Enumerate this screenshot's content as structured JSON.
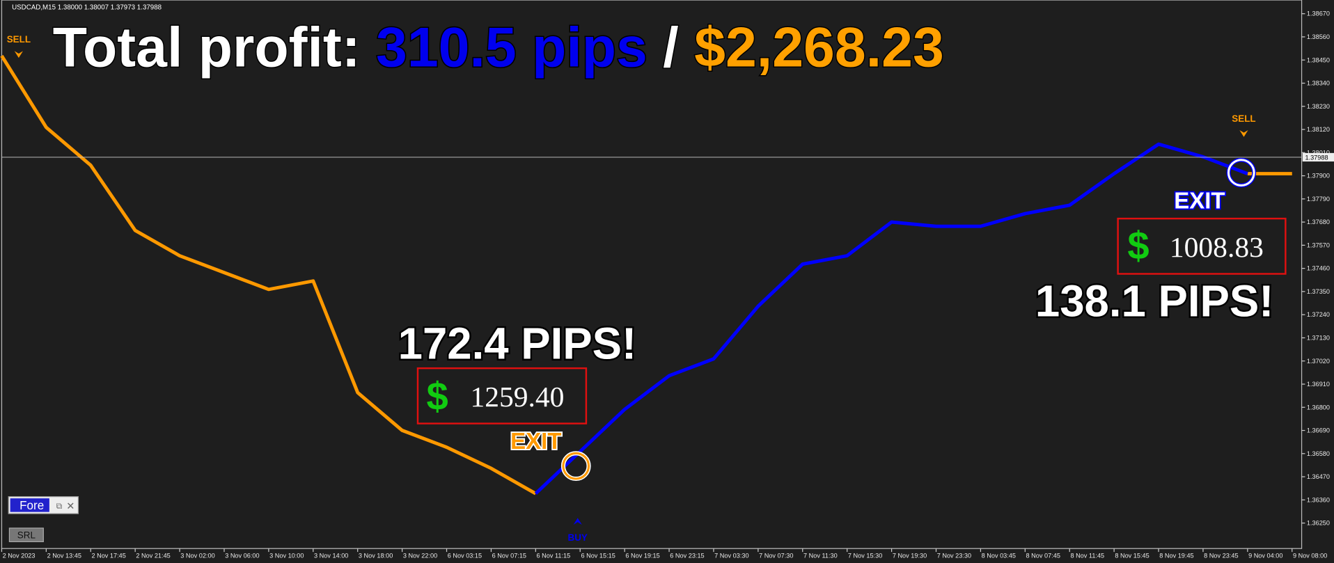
{
  "chart_data": {
    "type": "line",
    "ticker": "USDCAD,M15  1.38000 1.38007 1.37973 1.37988",
    "title": {
      "label": "Total profit:",
      "pips": "310.5 pips",
      "separator": "/",
      "money": "$2,268.23"
    },
    "categories": [
      "2 Nov 2023",
      "2 Nov 13:45",
      "2 Nov 17:45",
      "2 Nov 21:45",
      "3 Nov 02:00",
      "3 Nov 06:00",
      "3 Nov 10:00",
      "3 Nov 14:00",
      "3 Nov 18:00",
      "3 Nov 22:00",
      "6 Nov 03:15",
      "6 Nov 07:15",
      "6 Nov 11:15",
      "6 Nov 15:15",
      "6 Nov 19:15",
      "6 Nov 23:15",
      "7 Nov 03:30",
      "7 Nov 07:30",
      "7 Nov 11:30",
      "7 Nov 15:30",
      "7 Nov 19:30",
      "7 Nov 23:30",
      "8 Nov 03:45",
      "8 Nov 07:45",
      "8 Nov 11:45",
      "8 Nov 15:45",
      "8 Nov 19:45",
      "8 Nov 23:45",
      "9 Nov 04:00",
      "9 Nov 08:00"
    ],
    "series": [
      {
        "color": "#ff9900",
        "values": [
          1.3847,
          1.3813,
          1.3795,
          1.3764,
          1.3752,
          1.3744,
          1.3736,
          1.374,
          1.3687,
          1.3669,
          1.3661,
          1.3651,
          1.3639,
          null,
          null,
          null,
          null,
          null,
          null,
          null,
          null,
          null,
          null,
          null,
          null,
          null,
          null,
          null,
          1.3791,
          1.3791
        ]
      },
      {
        "color": "#0000ff",
        "values": [
          null,
          null,
          null,
          null,
          null,
          null,
          null,
          null,
          null,
          null,
          null,
          null,
          1.3639,
          1.3659,
          1.3679,
          1.3695,
          1.3703,
          1.3728,
          1.3748,
          1.3752,
          1.3768,
          1.3766,
          1.3766,
          1.3772,
          1.3776,
          1.3791,
          1.3805,
          1.3799,
          1.3791,
          null
        ]
      }
    ],
    "ylim": [
      1.36129,
      1.38735
    ],
    "yticks": [
      {
        "value": 1.3867,
        "label": "1.38670"
      },
      {
        "value": 1.3856,
        "label": "1.38560"
      },
      {
        "value": 1.3845,
        "label": "1.38450"
      },
      {
        "value": 1.3834,
        "label": "1.38340"
      },
      {
        "value": 1.3823,
        "label": "1.38230"
      },
      {
        "value": 1.3812,
        "label": "1.38120"
      },
      {
        "value": 1.3801,
        "label": "1.38010"
      },
      {
        "value": 1.379,
        "label": "1.37900"
      },
      {
        "value": 1.3779,
        "label": "1.37790"
      },
      {
        "value": 1.3768,
        "label": "1.37680"
      },
      {
        "value": 1.3757,
        "label": "1.37570"
      },
      {
        "value": 1.3746,
        "label": "1.37460"
      },
      {
        "value": 1.3735,
        "label": "1.37350"
      },
      {
        "value": 1.3724,
        "label": "1.37240"
      },
      {
        "value": 1.3713,
        "label": "1.37130"
      },
      {
        "value": 1.3702,
        "label": "1.37020"
      },
      {
        "value": 1.3691,
        "label": "1.36910"
      },
      {
        "value": 1.368,
        "label": "1.36800"
      },
      {
        "value": 1.3669,
        "label": "1.36690"
      },
      {
        "value": 1.3658,
        "label": "1.36580"
      },
      {
        "value": 1.3647,
        "label": "1.36470"
      },
      {
        "value": 1.3636,
        "label": "1.36360"
      },
      {
        "value": 1.3625,
        "label": "1.36250"
      }
    ],
    "current_price": 1.37988,
    "signals": [
      "SELL",
      "BUY",
      "SELL"
    ],
    "exits": [
      "EXIT",
      "EXIT"
    ],
    "trades": [
      {
        "pips": "172.4 PIPS!",
        "currency": "$",
        "profit": "1259.40"
      },
      {
        "pips": "138.1 PIPS!",
        "currency": "$",
        "profit": "1008.83"
      }
    ],
    "panel": {
      "indicator": "Fore",
      "button": "SRL"
    }
  }
}
